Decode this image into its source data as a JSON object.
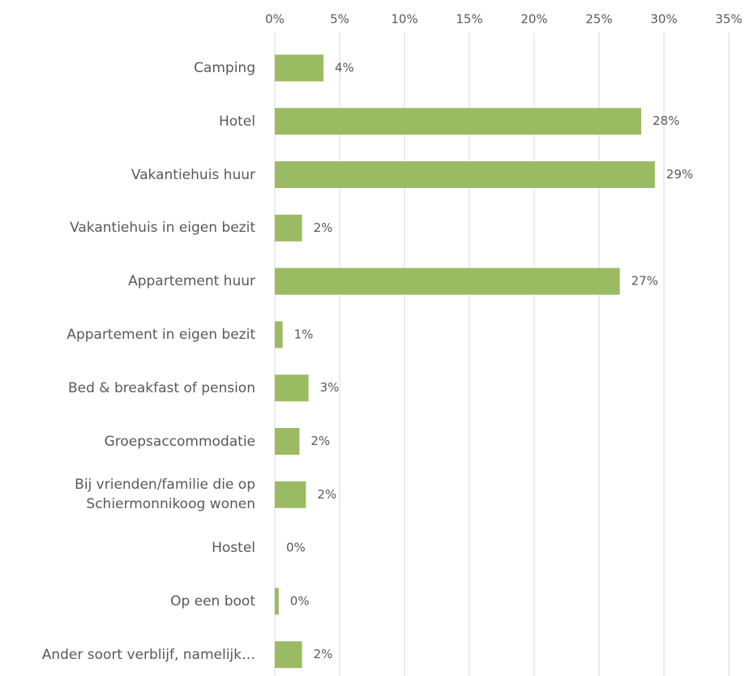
{
  "chart_data": {
    "type": "barh",
    "categories": [
      "Camping",
      "Hotel",
      "Vakantiehuis huur",
      "Vakantiehuis in eigen bezit",
      "Appartement huur",
      "Appartement in eigen bezit",
      "Bed & breakfast of pension",
      "Groepsaccommodatie",
      "Bij vrienden/familie die op\nSchiermonnikoog wonen",
      "Hostel",
      "Op een boot",
      "Ander soort verblijf, namelijk…"
    ],
    "values": [
      3.75,
      28.25,
      29.3,
      2.1,
      26.6,
      0.6,
      2.6,
      1.9,
      2.4,
      0,
      0.3,
      2.1
    ],
    "value_labels": [
      "4%",
      "28%",
      "29%",
      "2%",
      "27%",
      "1%",
      "3%",
      "2%",
      "2%",
      "0%",
      "0%",
      "2%"
    ],
    "color": "#9bbb62",
    "xlim": [
      0,
      35
    ],
    "xticks": [
      {
        "value": 0,
        "label": "0%"
      },
      {
        "value": 5,
        "label": "5%"
      },
      {
        "value": 10,
        "label": "10%"
      },
      {
        "value": 15,
        "label": "15%"
      },
      {
        "value": 20,
        "label": "20%"
      },
      {
        "value": 25,
        "label": "25%"
      },
      {
        "value": 30,
        "label": "30%"
      },
      {
        "value": 35,
        "label": "35%"
      }
    ],
    "grid": true
  }
}
